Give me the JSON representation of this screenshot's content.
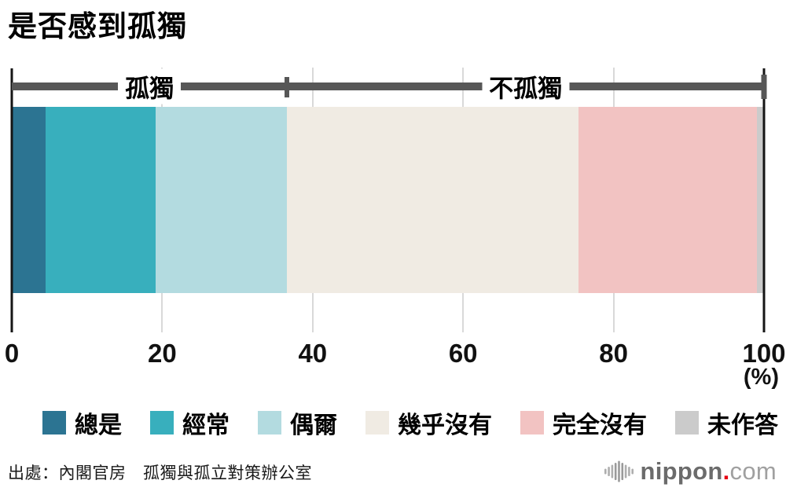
{
  "title": "是否感到孤獨",
  "chart_data": {
    "type": "bar",
    "orientation": "horizontal",
    "stacked": true,
    "title": "是否感到孤獨",
    "unit_label": "(%)",
    "xlim": [
      0,
      100
    ],
    "x_ticks": [
      0,
      20,
      40,
      60,
      80,
      100
    ],
    "grid": true,
    "legend_position": "bottom",
    "categories": [
      "總是",
      "經常",
      "偶爾",
      "幾乎沒有",
      "完全沒有",
      "未作答"
    ],
    "values": [
      4.5,
      14.6,
      17.5,
      38.7,
      23.8,
      0.9
    ],
    "colors": [
      "#2C7492",
      "#38AFBD",
      "#B3DBE0",
      "#F0EBE3",
      "#F2C3C2",
      "#CBCBCB"
    ],
    "groups": [
      {
        "label": "孤獨",
        "from": 0,
        "to": 36.6
      },
      {
        "label": "不孤獨",
        "from": 36.6,
        "to": 100
      }
    ]
  },
  "footer": {
    "source": "出處：內閣官房　孤獨與孤立對策辦公室"
  },
  "logo": {
    "brand": "nippon",
    "dot": ".",
    "tld": "com"
  },
  "style_colors": {
    "bracket": "#575757",
    "gridline": "#D9D9D9",
    "axis": "#151515"
  }
}
